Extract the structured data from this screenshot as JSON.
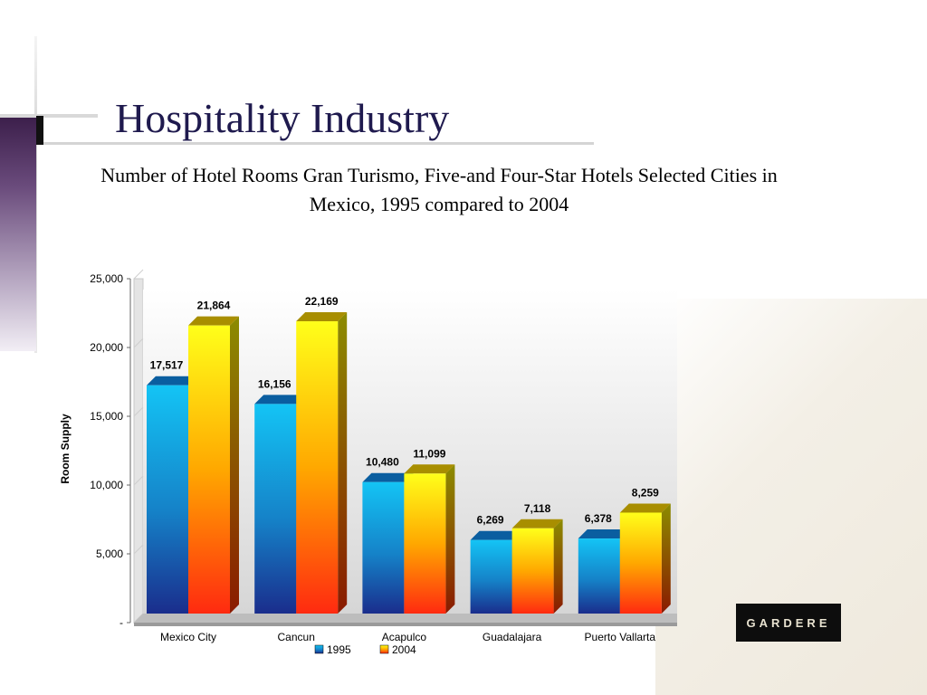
{
  "slide": {
    "title": "Hospitality Industry",
    "subtitle": "Number of Hotel Rooms Gran Turismo, Five-and Four-Star Hotels Selected Cities in Mexico, 1995 compared to 2004",
    "logo_text": "GARDERE"
  },
  "chart_data": {
    "type": "bar",
    "title": "",
    "xlabel": "",
    "ylabel": "Room Supply",
    "categories": [
      "Mexico City",
      "Cancun",
      "Acapulco",
      "Guadalajara",
      "Puerto Vallarta"
    ],
    "series": [
      {
        "name": "1995",
        "values": [
          17517,
          16156,
          10480,
          6269,
          6378
        ],
        "labels": [
          "17,517",
          "16,156",
          "10,480",
          "6,269",
          "6,378"
        ],
        "color": "#1e9ee6"
      },
      {
        "name": "2004",
        "values": [
          21864,
          22169,
          11099,
          7118,
          8259
        ],
        "labels": [
          "21,864",
          "22,169",
          "11,099",
          "7,118",
          "8,259"
        ],
        "color": "#ffb000"
      }
    ],
    "ylim": [
      0,
      25000
    ],
    "yticks": [
      0,
      5000,
      10000,
      15000,
      20000,
      25000
    ],
    "ytick_labels": [
      "-",
      "5,000",
      "10,000",
      "15,000",
      "20,000",
      "25,000"
    ],
    "grid": true,
    "legend_position": "bottom",
    "three_d": true
  }
}
